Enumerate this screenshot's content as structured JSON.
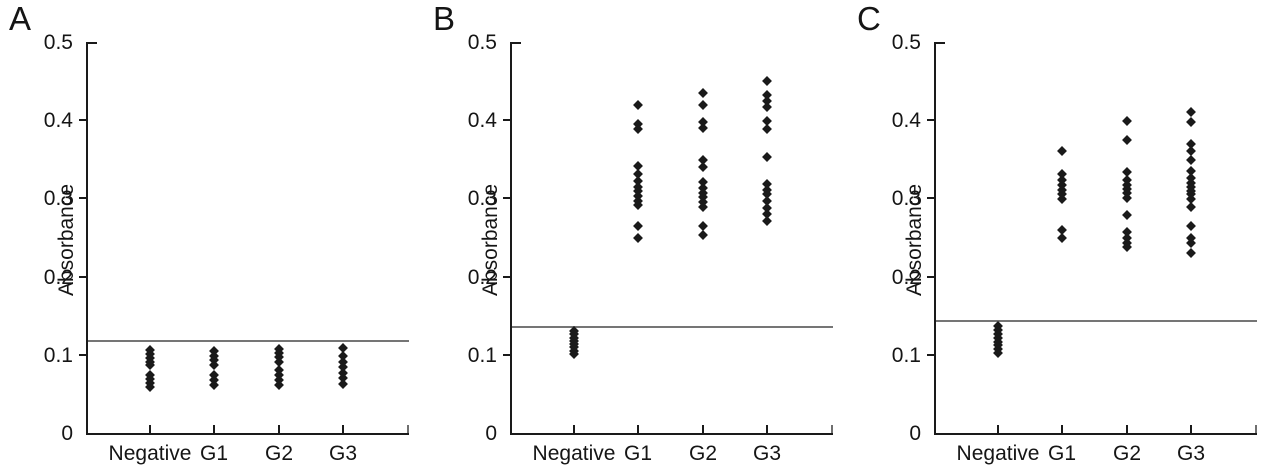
{
  "figure_title": "",
  "colors": {
    "marker": "#1a1a1a",
    "axis": "#1a1a1a",
    "cutoff_line": "#757575",
    "background": "#ffffff",
    "text": "#151515"
  },
  "chart_data": [
    {
      "panel_label": "A",
      "type": "scatter",
      "ylabel": "Absorbance",
      "xlabel": "",
      "ylim": [
        0,
        0.5
      ],
      "ytick_labels": [
        "0",
        "0.1",
        "0.2",
        "0.3",
        "0.4",
        "0.5"
      ],
      "yticks": [
        0,
        0.1,
        0.2,
        0.3,
        0.4,
        0.5
      ],
      "grid": false,
      "legend": "none",
      "marker": "diamond",
      "cutoff_line_y": 0.118,
      "categories": [
        "Negative",
        "G1",
        "G2",
        "G3"
      ],
      "series": [
        {
          "name": "Negative",
          "values": [
            0.106,
            0.101,
            0.096,
            0.091,
            0.087,
            0.074,
            0.069,
            0.064,
            0.059
          ]
        },
        {
          "name": "G1",
          "values": [
            0.105,
            0.099,
            0.093,
            0.087,
            0.074,
            0.068,
            0.062
          ]
        },
        {
          "name": "G2",
          "values": [
            0.108,
            0.102,
            0.097,
            0.091,
            0.08,
            0.074,
            0.068,
            0.062
          ]
        },
        {
          "name": "G3",
          "values": [
            0.109,
            0.098,
            0.091,
            0.084,
            0.077,
            0.07,
            0.063
          ]
        }
      ]
    },
    {
      "panel_label": "B",
      "type": "scatter",
      "ylabel": "Absorbance",
      "xlabel": "",
      "ylim": [
        0,
        0.5
      ],
      "ytick_labels": [
        "0",
        "0.1",
        "0.2",
        "0.3",
        "0.4",
        "0.5"
      ],
      "yticks": [
        0,
        0.1,
        0.2,
        0.3,
        0.4,
        0.5
      ],
      "grid": false,
      "legend": "none",
      "marker": "diamond",
      "cutoff_line_y": 0.136,
      "categories": [
        "Negative",
        "G1",
        "G2",
        "G3"
      ],
      "series": [
        {
          "name": "Negative",
          "values": [
            0.13,
            0.126,
            0.122,
            0.118,
            0.114,
            0.11,
            0.105,
            0.101
          ]
        },
        {
          "name": "G1",
          "values": [
            0.42,
            0.395,
            0.389,
            0.342,
            0.331,
            0.322,
            0.315,
            0.309,
            0.303,
            0.297,
            0.291,
            0.265,
            0.25
          ]
        },
        {
          "name": "G2",
          "values": [
            0.435,
            0.42,
            0.398,
            0.39,
            0.349,
            0.34,
            0.321,
            0.313,
            0.307,
            0.302,
            0.296,
            0.289,
            0.265,
            0.253
          ]
        },
        {
          "name": "G3",
          "values": [
            0.45,
            0.432,
            0.425,
            0.417,
            0.399,
            0.389,
            0.353,
            0.319,
            0.311,
            0.305,
            0.297,
            0.288,
            0.28,
            0.271
          ]
        }
      ]
    },
    {
      "panel_label": "C",
      "type": "scatter",
      "ylabel": "Absorbance",
      "xlabel": "",
      "ylim": [
        0,
        0.5
      ],
      "ytick_labels": [
        "0",
        "0.1",
        "0.2",
        "0.3",
        "0.4",
        "0.5"
      ],
      "yticks": [
        0,
        0.1,
        0.2,
        0.3,
        0.4,
        0.5
      ],
      "grid": false,
      "legend": "none",
      "marker": "diamond",
      "cutoff_line_y": 0.143,
      "categories": [
        "Negative",
        "G1",
        "G2",
        "G3"
      ],
      "series": [
        {
          "name": "Negative",
          "values": [
            0.137,
            0.132,
            0.127,
            0.122,
            0.117,
            0.112,
            0.107,
            0.102
          ]
        },
        {
          "name": "G1",
          "values": [
            0.36,
            0.331,
            0.323,
            0.317,
            0.311,
            0.305,
            0.299,
            0.26,
            0.25
          ]
        },
        {
          "name": "G2",
          "values": [
            0.399,
            0.375,
            0.334,
            0.323,
            0.317,
            0.312,
            0.307,
            0.3,
            0.279,
            0.257,
            0.25,
            0.243,
            0.238
          ]
        },
        {
          "name": "G3",
          "values": [
            0.41,
            0.398,
            0.37,
            0.36,
            0.349,
            0.335,
            0.326,
            0.32,
            0.315,
            0.31,
            0.305,
            0.299,
            0.289,
            0.265,
            0.25,
            0.243,
            0.23
          ]
        }
      ]
    }
  ]
}
